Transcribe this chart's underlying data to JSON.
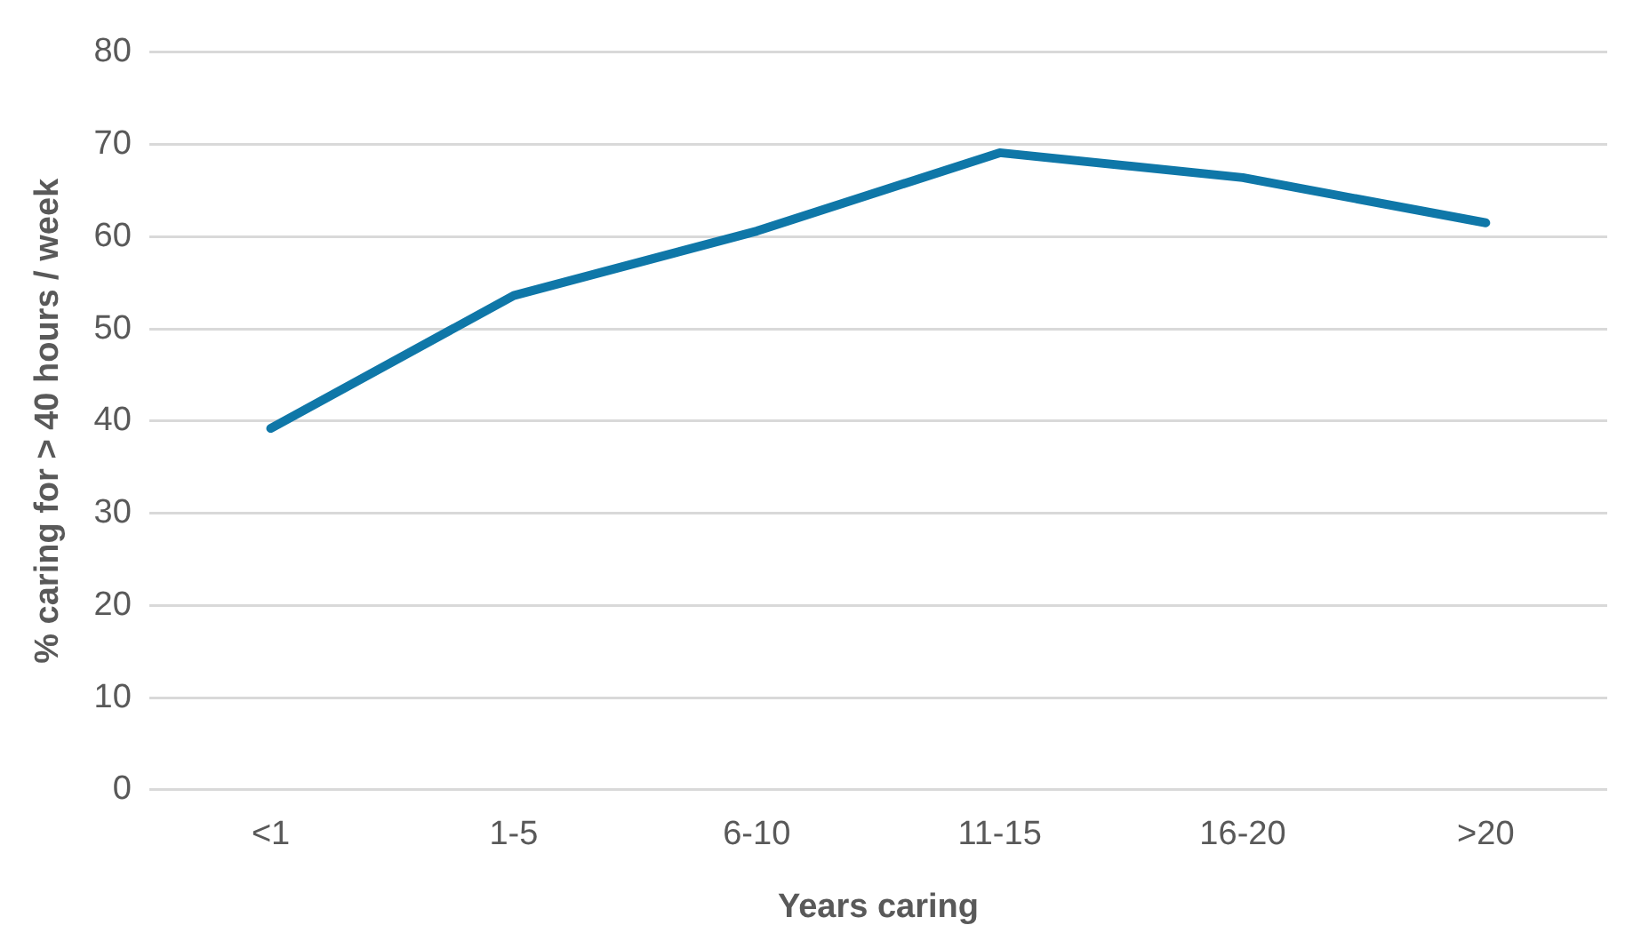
{
  "chart_data": {
    "type": "line",
    "xlabel": "Years caring",
    "ylabel": "% caring for > 40 hours / week",
    "categories": [
      "<1",
      "1-5",
      "6-10",
      "11-15",
      "16-20",
      ">20"
    ],
    "series": [
      {
        "color": "#0f77a8",
        "values": [
          39.2,
          53.6,
          60.6,
          69.1,
          66.4,
          61.5
        ]
      }
    ],
    "ylim": [
      0,
      80
    ],
    "yticks": [
      0,
      10,
      20,
      30,
      40,
      50,
      60,
      70,
      80
    ],
    "grid": "y",
    "marker": "none"
  }
}
